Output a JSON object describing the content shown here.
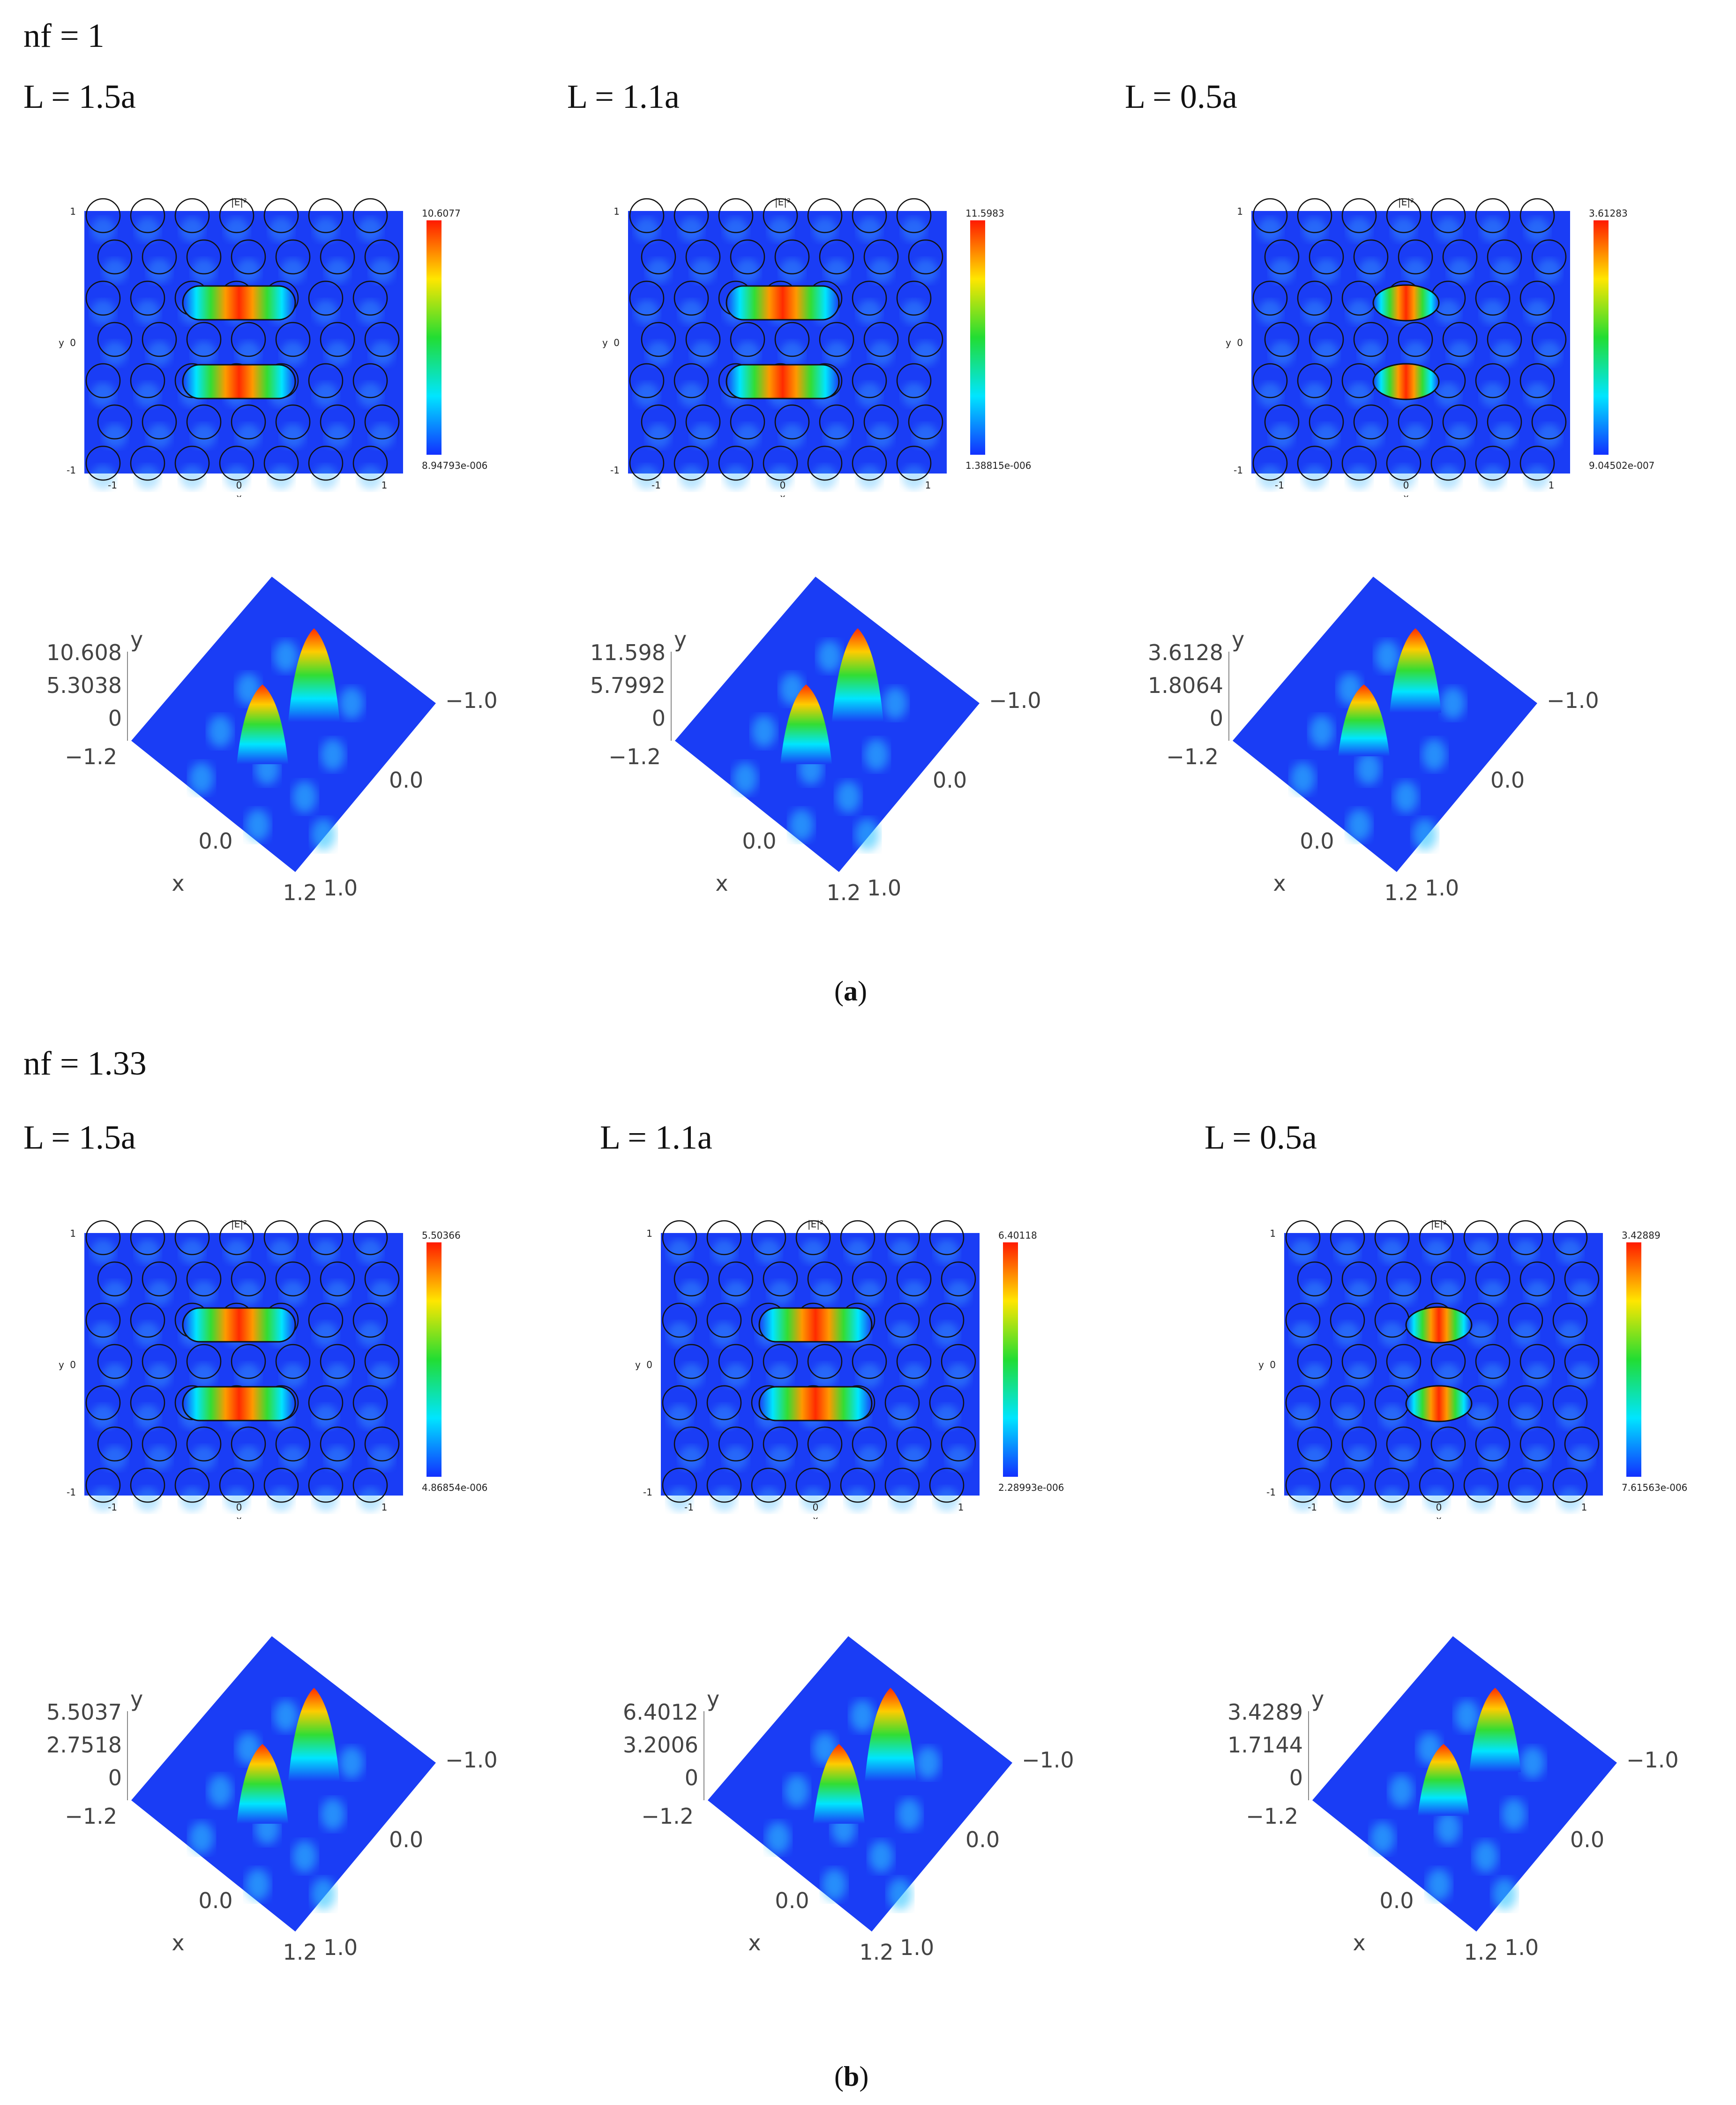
{
  "groups": [
    {
      "nf_label": "nf = 1",
      "caption_letter": "a",
      "panels": [
        {
          "L": "L = 1.5a",
          "title": "|E|²",
          "cb_max": "10.6077",
          "cb_min": "8.94793e-006",
          "z_ticks": [
            "10.608",
            "5.3038",
            "0"
          ],
          "shape": "wide"
        },
        {
          "L": "L = 1.1a",
          "title": "|E|²",
          "cb_max": "11.5983",
          "cb_min": "1.38815e-006",
          "z_ticks": [
            "11.598",
            "5.7992",
            "0"
          ],
          "shape": "wide"
        },
        {
          "L": "L = 0.5a",
          "title": "|E|²",
          "cb_max": "3.61283",
          "cb_min": "9.04502e-007",
          "z_ticks": [
            "3.6128",
            "1.8064",
            "0"
          ],
          "shape": "lens"
        }
      ]
    },
    {
      "nf_label": "nf = 1.33",
      "caption_letter": "b",
      "panels": [
        {
          "L": "L = 1.5a",
          "title": "|E|²",
          "cb_max": "5.50366",
          "cb_min": "4.86854e-006",
          "z_ticks": [
            "5.5037",
            "2.7518",
            "0"
          ],
          "shape": "wide"
        },
        {
          "L": "L = 1.1a",
          "title": "|E|²",
          "cb_max": "6.40118",
          "cb_min": "2.28993e-006",
          "z_ticks": [
            "6.4012",
            "3.2006",
            "0"
          ],
          "shape": "wide"
        },
        {
          "L": "L = 0.5a",
          "title": "|E|²",
          "cb_max": "3.42889",
          "cb_min": "7.61563e-006",
          "z_ticks": [
            "3.4289",
            "1.7144",
            "0"
          ],
          "shape": "lens"
        }
      ]
    }
  ],
  "axis_2d": {
    "x_label": "x",
    "y_label": "y",
    "ticks_neg": "-1",
    "ticks_zero": "0",
    "ticks_pos": "1"
  },
  "axis_3d": {
    "x_label": "x",
    "y_label": "y",
    "x_min": "−1.2",
    "x_mid": "0.0",
    "x_max": "1.2",
    "y_min": "−1.0",
    "y_mid": "0.0",
    "y_max": "1.0",
    "y_left": "−1.2"
  },
  "colors": {
    "field_bg": "#1a3df5",
    "hot": "#ff2a00",
    "mid": "#33dd33",
    "cool": "#00e5ff"
  }
}
